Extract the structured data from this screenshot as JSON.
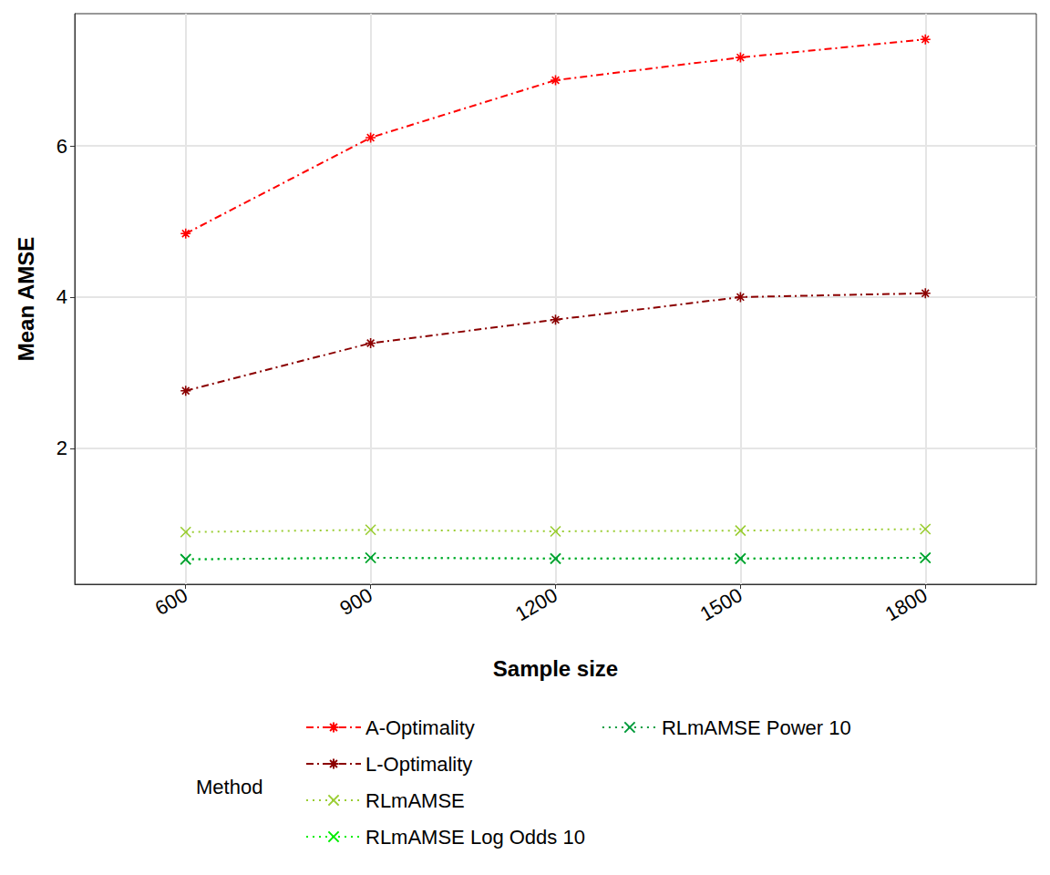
{
  "chart_data": {
    "type": "line",
    "x_label": "Sample size",
    "y_label": "Mean AMSE",
    "legend_title": "Method",
    "x": [
      600,
      900,
      1200,
      1500,
      1800
    ],
    "xlim": [
      420,
      1980
    ],
    "xticks": [
      600,
      900,
      1200,
      1500,
      1800
    ],
    "ylim": [
      0.2,
      7.75
    ],
    "yticks": [
      2,
      4,
      6
    ],
    "grid": true,
    "legend": "bottom",
    "series": [
      {
        "name": "A-Optimality",
        "color": "#ff0000",
        "marker": "asterisk",
        "line_style": "dashdot",
        "values": [
          4.84,
          6.11,
          6.87,
          7.17,
          7.41
        ]
      },
      {
        "name": "L-Optimality",
        "color": "#8b0000",
        "marker": "asterisk",
        "line_style": "dashdot",
        "values": [
          2.76,
          3.39,
          3.7,
          4.0,
          4.05
        ]
      },
      {
        "name": "RLmAMSE",
        "color": "#9acd32",
        "marker": "x",
        "line_style": "dotted",
        "values": [
          0.89,
          0.92,
          0.9,
          0.91,
          0.93
        ]
      },
      {
        "name": "RLmAMSE Log Odds 10",
        "color": "#00ee00",
        "marker": "x",
        "line_style": "dotted",
        "values": [
          0.53,
          0.55,
          0.54,
          0.54,
          0.55
        ]
      },
      {
        "name": "RLmAMSE Power 10",
        "color": "#009a3a",
        "marker": "x",
        "line_style": "dotted",
        "values": [
          0.53,
          0.55,
          0.54,
          0.54,
          0.55
        ]
      }
    ]
  }
}
